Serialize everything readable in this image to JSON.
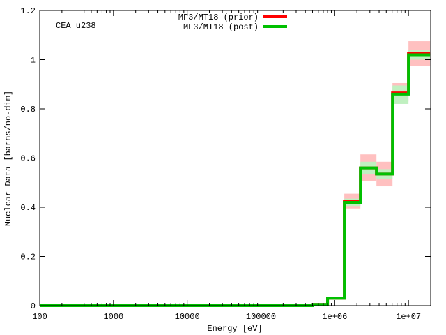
{
  "chart_data": {
    "type": "line",
    "title": "",
    "annotation": "CEA u238",
    "xlabel": "Energy [eV]",
    "ylabel": "Nuclear Data [barns/no-dim]",
    "x_scale": "log",
    "xlim": [
      100,
      20000000
    ],
    "ylim": [
      0,
      1.2
    ],
    "x_ticks": [
      {
        "value": 100,
        "label": "100"
      },
      {
        "value": 1000,
        "label": "1000"
      },
      {
        "value": 10000,
        "label": "10000"
      },
      {
        "value": 100000,
        "label": "100000"
      },
      {
        "value": 1000000,
        "label": "1e+06"
      },
      {
        "value": 10000000,
        "label": "1e+07"
      }
    ],
    "y_ticks": [
      {
        "value": 0,
        "label": "0"
      },
      {
        "value": 0.2,
        "label": "0.2"
      },
      {
        "value": 0.4,
        "label": "0.4"
      },
      {
        "value": 0.6,
        "label": "0.6"
      },
      {
        "value": 0.8,
        "label": "0.8"
      },
      {
        "value": 1.0,
        "label": "1"
      },
      {
        "value": 1.2,
        "label": "1.2"
      }
    ],
    "legend_position": "top-center",
    "grid": false,
    "bin_edges": [
      100,
      500000,
      800000,
      1350000,
      2230000,
      3680000,
      6070000,
      10000000,
      19600000
    ],
    "series": [
      {
        "name": "MF3/MT18 (prior)",
        "color": "#ff0000",
        "band_color": "#ffc0c0",
        "values": [
          0.0,
          0.005,
          0.03,
          0.425,
          0.56,
          0.535,
          0.865,
          1.025
        ],
        "lower": [
          0.0,
          0.003,
          0.025,
          0.395,
          0.505,
          0.485,
          0.83,
          0.975
        ],
        "upper": [
          0.0,
          0.007,
          0.035,
          0.455,
          0.615,
          0.585,
          0.905,
          1.075
        ]
      },
      {
        "name": "MF3/MT18 (post)",
        "color": "#00c000",
        "band_color": "#c0f0c0",
        "values": [
          0.0,
          0.005,
          0.03,
          0.42,
          0.56,
          0.535,
          0.86,
          1.02
        ],
        "lower": [
          0.0,
          0.004,
          0.027,
          0.405,
          0.535,
          0.515,
          0.82,
          1.0
        ],
        "upper": [
          0.0,
          0.006,
          0.033,
          0.435,
          0.585,
          0.555,
          0.895,
          1.04
        ]
      }
    ]
  }
}
